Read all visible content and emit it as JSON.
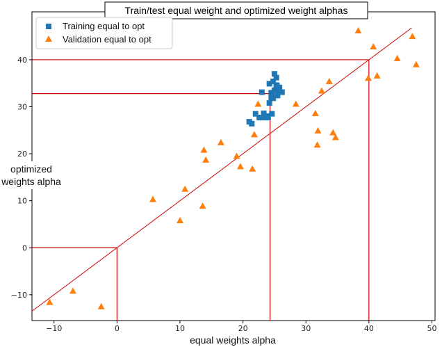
{
  "chart_data": {
    "type": "scatter",
    "title": "Train/test equal weight and optimized weight alphas",
    "xlabel": "equal weights alpha",
    "ylabel_lines": [
      "optimized",
      "weights alpha"
    ],
    "xlim": [
      -13.5,
      50.5
    ],
    "ylim": [
      -15.5,
      50.2
    ],
    "xticks": [
      -10,
      0,
      10,
      20,
      30,
      40,
      50
    ],
    "yticks": [
      -10,
      0,
      10,
      20,
      30,
      40
    ],
    "grid": false,
    "legend_position": "top-left",
    "series": [
      {
        "name": "Training equal to opt",
        "marker": "square",
        "color": "#1f77b4",
        "points": [
          [
            21.0,
            26.8
          ],
          [
            21.4,
            26.4
          ],
          [
            22.0,
            28.5
          ],
          [
            22.6,
            27.7
          ],
          [
            23.0,
            27.7
          ],
          [
            23.3,
            28.6
          ],
          [
            23.5,
            27.7
          ],
          [
            23.0,
            33.1
          ],
          [
            23.8,
            28.0
          ],
          [
            24.0,
            27.7
          ],
          [
            24.2,
            30.8
          ],
          [
            24.5,
            33.0
          ],
          [
            24.5,
            32.0
          ],
          [
            24.2,
            34.9
          ],
          [
            24.8,
            35.4
          ],
          [
            24.6,
            32.5
          ],
          [
            25.0,
            37.0
          ],
          [
            25.3,
            36.2
          ],
          [
            25.4,
            34.5
          ],
          [
            25.0,
            33.5
          ],
          [
            25.6,
            33.4
          ],
          [
            25.8,
            34.1
          ],
          [
            25.5,
            32.4
          ],
          [
            26.2,
            33.1
          ],
          [
            24.6,
            28.5
          ],
          [
            25.3,
            34.6
          ],
          [
            24.8,
            31.8
          ]
        ]
      },
      {
        "name": "Validation equal to opt",
        "marker": "triangle",
        "color": "#ff7f0e",
        "points": [
          [
            -10.7,
            -11.6
          ],
          [
            -7.0,
            -9.2
          ],
          [
            -2.5,
            -12.5
          ],
          [
            5.7,
            10.3
          ],
          [
            10.0,
            5.8
          ],
          [
            10.8,
            12.5
          ],
          [
            13.6,
            8.9
          ],
          [
            13.8,
            20.8
          ],
          [
            14.1,
            18.7
          ],
          [
            16.5,
            22.4
          ],
          [
            19.0,
            19.5
          ],
          [
            19.6,
            17.3
          ],
          [
            21.5,
            16.8
          ],
          [
            21.8,
            24.1
          ],
          [
            22.4,
            30.6
          ],
          [
            28.4,
            30.6
          ],
          [
            31.5,
            28.6
          ],
          [
            31.8,
            21.9
          ],
          [
            31.9,
            24.9
          ],
          [
            32.5,
            33.4
          ],
          [
            33.7,
            35.4
          ],
          [
            34.3,
            24.5
          ],
          [
            34.7,
            23.5
          ],
          [
            38.3,
            46.2
          ],
          [
            39.9,
            36.1
          ],
          [
            40.7,
            42.8
          ],
          [
            41.3,
            36.6
          ],
          [
            44.5,
            40.3
          ],
          [
            46.9,
            45.0
          ],
          [
            47.5,
            39.0
          ]
        ]
      }
    ],
    "annotations": {
      "diagonal": {
        "from": [
          -13.5,
          -13.5
        ],
        "to": [
          46.8,
          46.8
        ],
        "color": "#cc0000"
      },
      "guides": [
        {
          "x": 0,
          "y": 0,
          "color": "#cc0000"
        },
        {
          "x": 24.3,
          "y": 32.8,
          "color": "#cc0000"
        },
        {
          "x": 40.0,
          "y": 40.0,
          "color": "#cc0000"
        }
      ]
    }
  }
}
